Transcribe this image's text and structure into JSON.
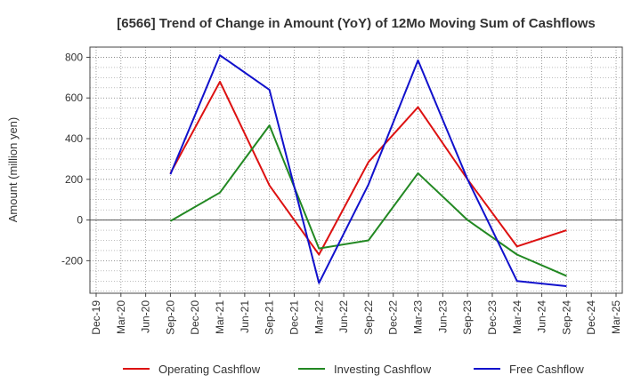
{
  "chart_data": {
    "type": "line",
    "title": "[6566]  Trend of Change in Amount (YoY) of 12Mo Moving Sum of Cashflows",
    "xlabel": "",
    "ylabel": "Amount (million yen)",
    "ylim": [
      -360,
      850
    ],
    "yticks": [
      -200,
      0,
      200,
      400,
      600,
      800
    ],
    "categories": [
      "Dec-19",
      "Mar-20",
      "Jun-20",
      "Sep-20",
      "Dec-20",
      "Mar-21",
      "Jun-21",
      "Sep-21",
      "Dec-21",
      "Mar-22",
      "Jun-22",
      "Sep-22",
      "Dec-22",
      "Mar-23",
      "Jun-23",
      "Sep-23",
      "Dec-23",
      "Mar-24",
      "Jun-24",
      "Sep-24",
      "Dec-24",
      "Mar-25"
    ],
    "grid": true,
    "legend_position": "bottom",
    "series": [
      {
        "name": "Operating Cashflow",
        "color": "#dd1111",
        "values": [
          null,
          null,
          null,
          230,
          null,
          680,
          null,
          170,
          null,
          -170,
          null,
          285,
          null,
          555,
          null,
          200,
          null,
          -130,
          null,
          -50,
          null,
          null
        ]
      },
      {
        "name": "Investing Cashflow",
        "color": "#228822",
        "values": [
          null,
          null,
          null,
          -5,
          null,
          135,
          null,
          465,
          null,
          -140,
          null,
          -100,
          null,
          230,
          null,
          0,
          null,
          -170,
          null,
          -275,
          null,
          null
        ]
      },
      {
        "name": "Free Cashflow",
        "color": "#1111cc",
        "values": [
          null,
          null,
          null,
          225,
          null,
          810,
          null,
          640,
          null,
          -310,
          null,
          175,
          null,
          785,
          null,
          200,
          null,
          -300,
          null,
          -325,
          null,
          null
        ]
      }
    ]
  }
}
